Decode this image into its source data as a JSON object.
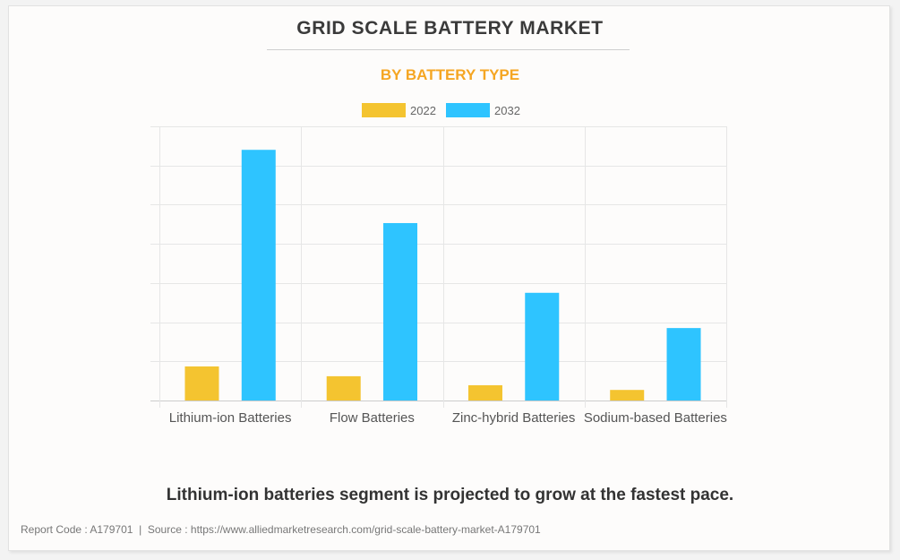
{
  "header": {
    "title": "GRID SCALE BATTERY MARKET",
    "subtitle": "BY BATTERY TYPE"
  },
  "colors": {
    "series_2022": "#f4c430",
    "series_2032": "#2ec4ff",
    "subtitle": "#f5a623"
  },
  "chart_data": {
    "type": "bar",
    "title": "GRID SCALE BATTERY MARKET",
    "subtitle": "BY BATTERY TYPE",
    "xlabel": "",
    "ylabel": "",
    "y_tick_labels_shown": false,
    "grid": true,
    "legend_position": "top-center",
    "ylim": [
      0,
      7
    ],
    "y_units": "relative (one unit per gridline; axis unlabeled)",
    "categories": [
      "Lithium-ion Batteries",
      "Flow Batteries",
      "Zinc-hybrid Batteries",
      "Sodium-based Batteries"
    ],
    "series": [
      {
        "name": "2022",
        "color": "#f4c430",
        "values": [
          0.87,
          0.62,
          0.39,
          0.27
        ]
      },
      {
        "name": "2032",
        "color": "#2ec4ff",
        "values": [
          6.4,
          4.53,
          2.75,
          1.85
        ]
      }
    ]
  },
  "insight": "Lithium-ion batteries segment is projected to grow at the fastest pace.",
  "footer": {
    "text": "Report Code : A179701  |  Source : https://www.alliedmarketresearch.com/grid-scale-battery-market-A179701"
  }
}
